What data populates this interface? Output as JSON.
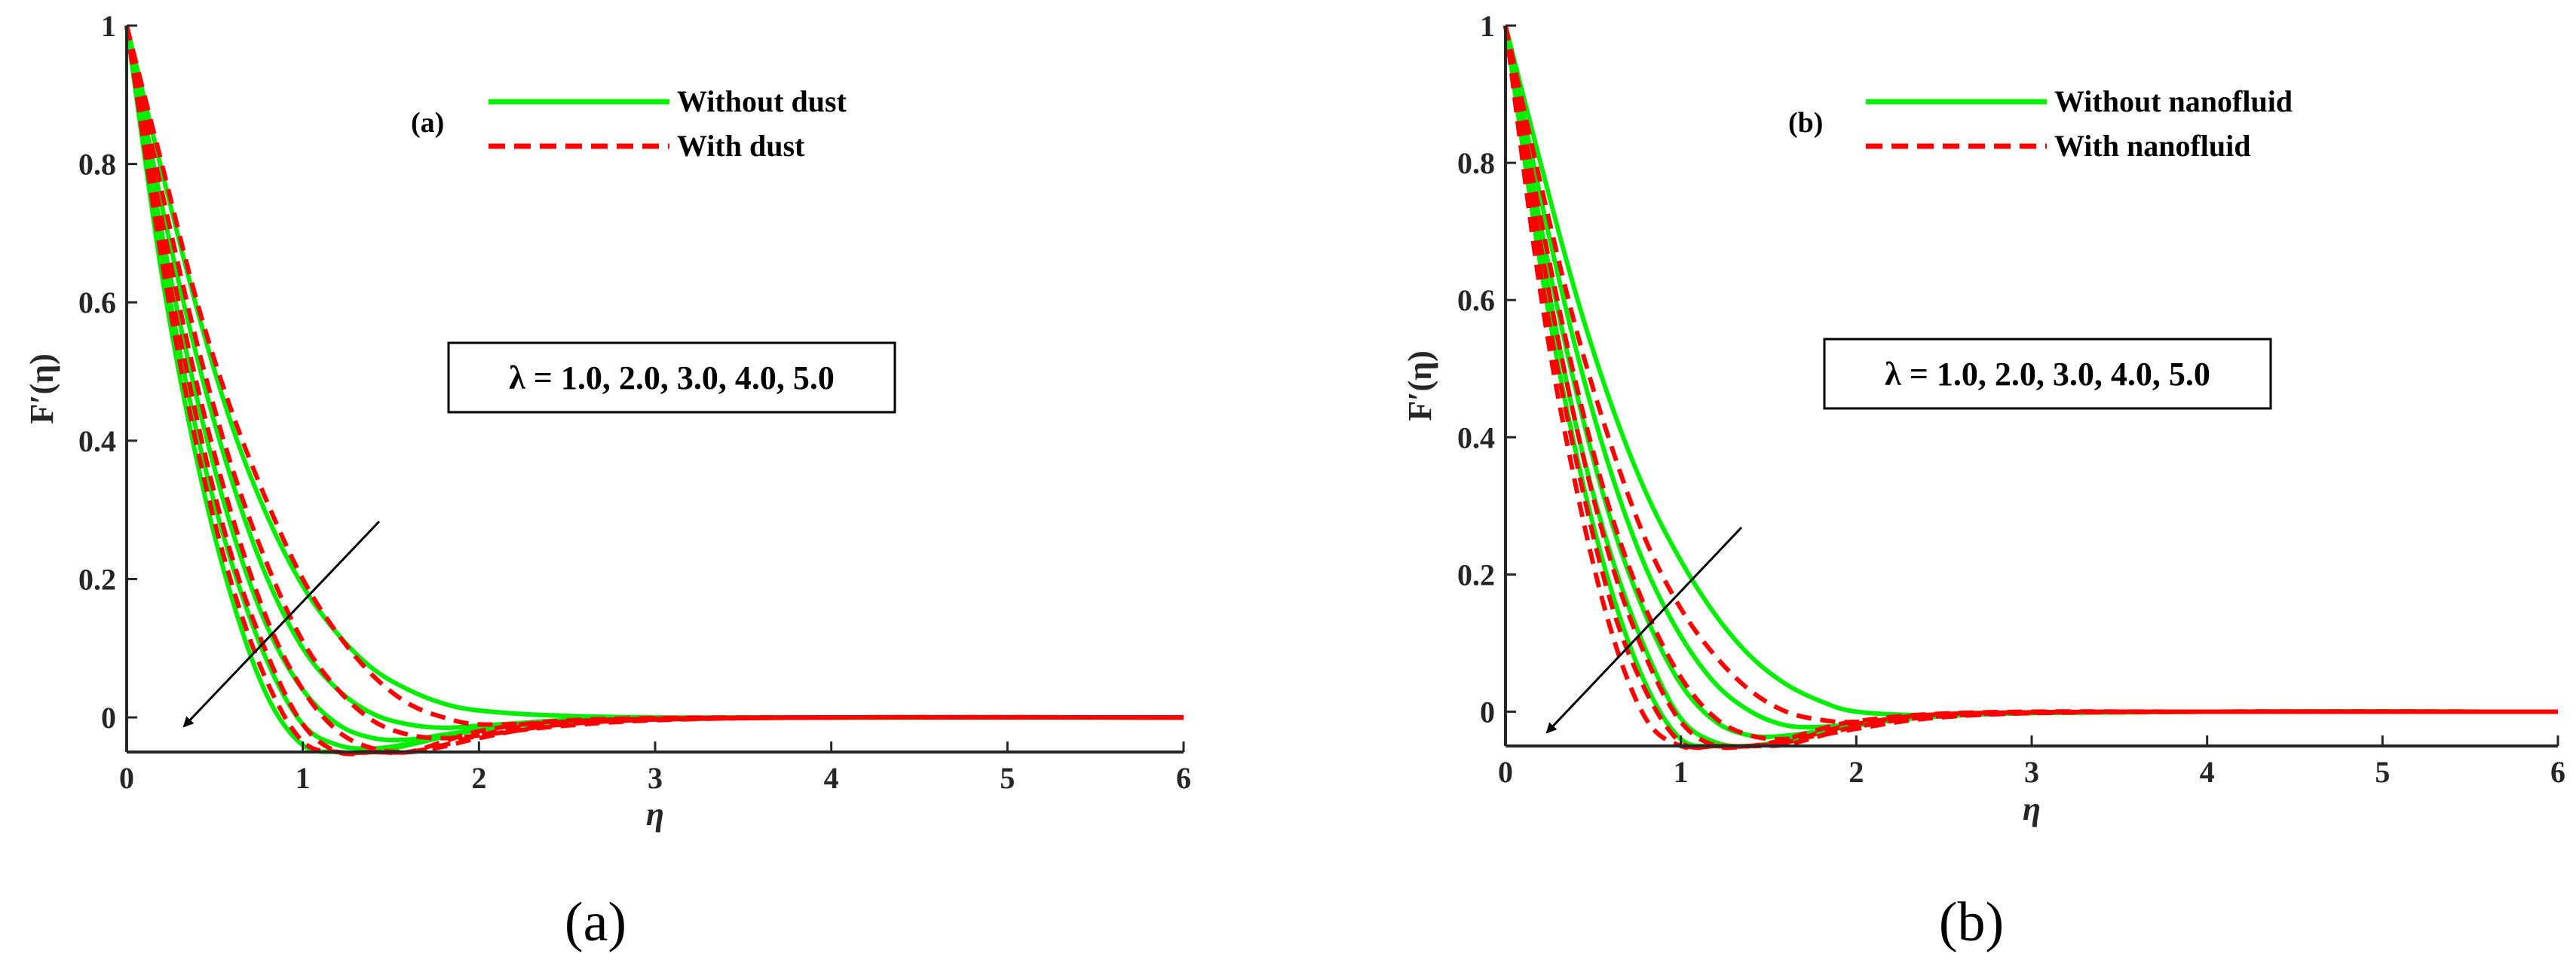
{
  "chart_data": [
    {
      "type": "line",
      "panel_label": "(a)",
      "caption": "(a)",
      "xlabel": "η",
      "ylabel": "F′(η)",
      "xlim": [
        0,
        6
      ],
      "ylim": [
        -0.05,
        1
      ],
      "xticks": [
        "0",
        "1",
        "2",
        "3",
        "4",
        "5",
        "6"
      ],
      "yticks": [
        "0",
        "0.2",
        "0.4",
        "0.6",
        "0.8",
        "1"
      ],
      "annotation": "λ = 1.0, 2.0, 3.0, 4.0, 5.0",
      "legend": [
        {
          "label": "Without dust",
          "style": "solid",
          "color": "#00ee00"
        },
        {
          "label": "With dust",
          "style": "dashed",
          "color": "#ff0000"
        }
      ],
      "series": [
        {
          "name": "Without dust, λ = 1.0",
          "group": 0,
          "x": [
            0,
            0.2,
            0.4,
            0.6,
            0.8,
            1.0,
            1.2,
            1.4,
            1.6,
            1.8,
            2.0,
            2.4,
            3.0,
            4.0,
            6.0
          ],
          "y": [
            1,
            0.79,
            0.59,
            0.42,
            0.29,
            0.19,
            0.12,
            0.07,
            0.04,
            0.02,
            0.01,
            0.003,
            0,
            0,
            0
          ]
        },
        {
          "name": "Without dust, λ = 2.0",
          "group": 0,
          "x": [
            0,
            0.2,
            0.4,
            0.6,
            0.8,
            1.0,
            1.2,
            1.4,
            1.6,
            1.8,
            2.0,
            2.4,
            3.0,
            4.0,
            6.0
          ],
          "y": [
            1,
            0.74,
            0.52,
            0.34,
            0.2,
            0.1,
            0.04,
            0.005,
            -0.01,
            -0.015,
            -0.012,
            -0.006,
            -0.002,
            0,
            0
          ]
        },
        {
          "name": "Without dust, λ = 3.0",
          "group": 0,
          "x": [
            0,
            0.2,
            0.4,
            0.6,
            0.8,
            1.0,
            1.2,
            1.4,
            1.6,
            1.8,
            2.0,
            2.4,
            3.0,
            4.0,
            6.0
          ],
          "y": [
            1,
            0.7,
            0.46,
            0.27,
            0.13,
            0.04,
            -0.01,
            -0.03,
            -0.032,
            -0.025,
            -0.018,
            -0.008,
            -0.002,
            0,
            0
          ]
        },
        {
          "name": "Without dust, λ = 4.0",
          "group": 0,
          "x": [
            0,
            0.2,
            0.4,
            0.6,
            0.8,
            1.0,
            1.2,
            1.4,
            1.6,
            1.8,
            2.0,
            2.4,
            3.0,
            4.0,
            6.0
          ],
          "y": [
            1,
            0.67,
            0.41,
            0.22,
            0.08,
            -0.01,
            -0.04,
            -0.045,
            -0.038,
            -0.028,
            -0.018,
            -0.006,
            -0.001,
            0,
            0
          ]
        },
        {
          "name": "Without dust, λ = 5.0",
          "group": 0,
          "x": [
            0,
            0.2,
            0.4,
            0.6,
            0.8,
            1.0,
            1.2,
            1.4,
            1.6,
            1.8,
            2.0,
            2.4,
            3.0,
            4.0,
            6.0
          ],
          "y": [
            1,
            0.64,
            0.37,
            0.17,
            0.03,
            -0.04,
            -0.055,
            -0.05,
            -0.04,
            -0.028,
            -0.016,
            -0.005,
            -0.001,
            0,
            0
          ]
        },
        {
          "name": "With dust, λ = 1.0",
          "group": 1,
          "x": [
            0,
            0.2,
            0.4,
            0.6,
            0.8,
            1.0,
            1.2,
            1.4,
            1.6,
            1.8,
            2.0,
            2.4,
            3.0,
            4.0,
            6.0
          ],
          "y": [
            1,
            0.8,
            0.6,
            0.44,
            0.31,
            0.2,
            0.12,
            0.06,
            0.02,
            0,
            -0.01,
            -0.008,
            -0.003,
            0,
            0
          ]
        },
        {
          "name": "With dust, λ = 2.0",
          "group": 1,
          "x": [
            0,
            0.2,
            0.4,
            0.6,
            0.8,
            1.0,
            1.2,
            1.4,
            1.6,
            1.8,
            2.0,
            2.4,
            3.0,
            4.0,
            6.0
          ],
          "y": [
            1,
            0.76,
            0.54,
            0.36,
            0.22,
            0.11,
            0.04,
            -0.005,
            -0.025,
            -0.03,
            -0.026,
            -0.014,
            -0.004,
            0,
            0
          ]
        },
        {
          "name": "With dust, λ = 3.0",
          "group": 1,
          "x": [
            0,
            0.2,
            0.4,
            0.6,
            0.8,
            1.0,
            1.2,
            1.4,
            1.6,
            1.8,
            2.0,
            2.4,
            3.0,
            4.0,
            6.0
          ],
          "y": [
            1,
            0.72,
            0.48,
            0.29,
            0.14,
            0.04,
            -0.02,
            -0.045,
            -0.05,
            -0.042,
            -0.03,
            -0.012,
            -0.003,
            0,
            0
          ]
        },
        {
          "name": "With dust, λ = 4.0",
          "group": 1,
          "x": [
            0,
            0.2,
            0.4,
            0.6,
            0.8,
            1.0,
            1.2,
            1.4,
            1.6,
            1.8,
            2.0,
            2.4,
            3.0,
            4.0,
            6.0
          ],
          "y": [
            1,
            0.69,
            0.43,
            0.23,
            0.09,
            -0.01,
            -0.05,
            -0.06,
            -0.055,
            -0.04,
            -0.026,
            -0.008,
            -0.002,
            0,
            0
          ]
        },
        {
          "name": "With dust, λ = 5.0",
          "group": 1,
          "x": [
            0,
            0.2,
            0.4,
            0.6,
            0.8,
            1.0,
            1.2,
            1.4,
            1.6,
            1.8,
            2.0,
            2.4,
            3.0,
            4.0,
            6.0
          ],
          "y": [
            1,
            0.66,
            0.39,
            0.19,
            0.05,
            -0.035,
            -0.065,
            -0.062,
            -0.05,
            -0.035,
            -0.02,
            -0.006,
            -0.001,
            0,
            0
          ]
        }
      ]
    },
    {
      "type": "line",
      "panel_label": "(b)",
      "caption": "(b)",
      "xlabel": "η",
      "ylabel": "F′(η)",
      "xlim": [
        0,
        6
      ],
      "ylim": [
        -0.05,
        1
      ],
      "xticks": [
        "0",
        "1",
        "2",
        "3",
        "4",
        "5",
        "6"
      ],
      "yticks": [
        "0",
        "0.2",
        "0.4",
        "0.6",
        "0.8",
        "1"
      ],
      "annotation": "λ = 1.0, 2.0, 3.0, 4.0, 5.0",
      "legend": [
        {
          "label": "Without nanofluid",
          "style": "solid",
          "color": "#00ee00"
        },
        {
          "label": "With nanofluid",
          "style": "dashed",
          "color": "#ff0000"
        }
      ],
      "series": [
        {
          "name": "Without nanofluid, λ = 1.0",
          "group": 0,
          "x": [
            0,
            0.2,
            0.4,
            0.6,
            0.8,
            1.0,
            1.2,
            1.4,
            1.6,
            1.8,
            2.0,
            2.4,
            3.0,
            4.0,
            6.0
          ],
          "y": [
            1,
            0.8,
            0.61,
            0.45,
            0.32,
            0.22,
            0.14,
            0.08,
            0.04,
            0.015,
            0,
            -0.005,
            -0.002,
            0,
            0
          ]
        },
        {
          "name": "Without nanofluid, λ = 2.0",
          "group": 0,
          "x": [
            0,
            0.2,
            0.4,
            0.6,
            0.8,
            1.0,
            1.2,
            1.4,
            1.6,
            1.8,
            2.0,
            2.4,
            3.0,
            4.0,
            6.0
          ],
          "y": [
            1,
            0.75,
            0.53,
            0.35,
            0.21,
            0.11,
            0.04,
            0,
            -0.02,
            -0.022,
            -0.018,
            -0.008,
            -0.002,
            0,
            0
          ]
        },
        {
          "name": "Without nanofluid, λ = 3.0",
          "group": 0,
          "x": [
            0,
            0.2,
            0.4,
            0.6,
            0.8,
            1.0,
            1.2,
            1.4,
            1.6,
            1.8,
            2.0,
            2.4,
            3.0,
            4.0,
            6.0
          ],
          "y": [
            1,
            0.71,
            0.47,
            0.28,
            0.14,
            0.04,
            -0.015,
            -0.035,
            -0.035,
            -0.028,
            -0.02,
            -0.008,
            -0.002,
            0,
            0
          ]
        },
        {
          "name": "Without nanofluid, λ = 4.0",
          "group": 0,
          "x": [
            0,
            0.2,
            0.4,
            0.6,
            0.8,
            1.0,
            1.2,
            1.4,
            1.6,
            1.8,
            2.0,
            2.4,
            3.0,
            4.0,
            6.0
          ],
          "y": [
            1,
            0.68,
            0.42,
            0.23,
            0.09,
            -0.01,
            -0.045,
            -0.05,
            -0.042,
            -0.03,
            -0.02,
            -0.007,
            -0.001,
            0,
            0
          ]
        },
        {
          "name": "Without nanofluid, λ = 5.0",
          "group": 0,
          "x": [
            0,
            0.2,
            0.4,
            0.6,
            0.8,
            1.0,
            1.2,
            1.4,
            1.6,
            1.8,
            2.0,
            2.4,
            3.0,
            4.0,
            6.0
          ],
          "y": [
            1,
            0.65,
            0.38,
            0.18,
            0.04,
            -0.04,
            -0.06,
            -0.055,
            -0.042,
            -0.03,
            -0.018,
            -0.005,
            -0.001,
            0,
            0
          ]
        },
        {
          "name": "With nanofluid, λ = 1.0",
          "group": 1,
          "x": [
            0,
            0.2,
            0.4,
            0.6,
            0.8,
            1.0,
            1.2,
            1.4,
            1.6,
            1.8,
            2.0,
            2.4,
            3.0,
            4.0,
            6.0
          ],
          "y": [
            1,
            0.77,
            0.56,
            0.39,
            0.25,
            0.15,
            0.08,
            0.03,
            0,
            -0.012,
            -0.015,
            -0.008,
            -0.002,
            0,
            0
          ]
        },
        {
          "name": "With nanofluid, λ = 2.0",
          "group": 1,
          "x": [
            0,
            0.2,
            0.4,
            0.6,
            0.8,
            1.0,
            1.2,
            1.4,
            1.6,
            1.8,
            2.0,
            2.4,
            3.0,
            4.0,
            6.0
          ],
          "y": [
            1,
            0.72,
            0.48,
            0.29,
            0.15,
            0.05,
            -0.01,
            -0.035,
            -0.04,
            -0.034,
            -0.025,
            -0.01,
            -0.002,
            0,
            0
          ]
        },
        {
          "name": "With nanofluid, λ = 3.0",
          "group": 1,
          "x": [
            0,
            0.2,
            0.4,
            0.6,
            0.8,
            1.0,
            1.2,
            1.4,
            1.6,
            1.8,
            2.0,
            2.4,
            3.0,
            4.0,
            6.0
          ],
          "y": [
            1,
            0.68,
            0.42,
            0.22,
            0.08,
            -0.015,
            -0.055,
            -0.058,
            -0.048,
            -0.035,
            -0.022,
            -0.008,
            -0.001,
            0,
            0
          ]
        },
        {
          "name": "With nanofluid, λ = 4.0",
          "group": 1,
          "x": [
            0,
            0.2,
            0.4,
            0.6,
            0.8,
            1.0,
            1.2,
            1.4,
            1.6,
            1.8,
            2.0,
            2.4,
            3.0,
            4.0,
            6.0
          ],
          "y": [
            1,
            0.64,
            0.37,
            0.16,
            0.03,
            -0.045,
            -0.068,
            -0.06,
            -0.045,
            -0.03,
            -0.018,
            -0.005,
            -0.001,
            0,
            0
          ]
        },
        {
          "name": "With nanofluid, λ = 5.0",
          "group": 1,
          "x": [
            0,
            0.2,
            0.4,
            0.6,
            0.8,
            1.0,
            1.2,
            1.4,
            1.6,
            1.8,
            2.0,
            2.4,
            3.0,
            4.0,
            6.0
          ],
          "y": [
            1,
            0.61,
            0.33,
            0.12,
            -0.01,
            -0.065,
            -0.07,
            -0.058,
            -0.04,
            -0.025,
            -0.014,
            -0.004,
            0,
            0,
            0
          ]
        }
      ]
    }
  ]
}
